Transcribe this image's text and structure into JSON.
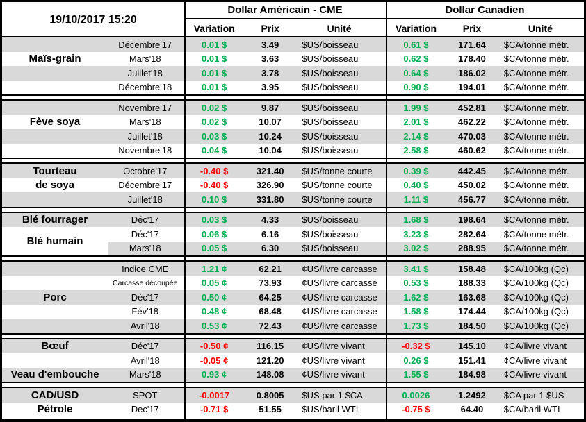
{
  "header": {
    "datetime": "19/10/2017 15:20",
    "usd_title": "Dollar Américain - CME",
    "cad_title": "Dollar Canadien",
    "columns": {
      "variation": "Variation",
      "prix": "Prix",
      "unite": "Unité"
    }
  },
  "colors": {
    "up_green": "#00B050",
    "down_red": "#FF0000",
    "row_stripe": "#D9D9D9",
    "border": "#000000"
  },
  "groups": [
    {
      "labels": [
        {
          "text": "Maïs-grain",
          "row": 1,
          "span": 1
        }
      ],
      "rows": [
        {
          "contract": "Décembre'17",
          "us": {
            "var": "0.01 $",
            "dir": "up",
            "prix": "3.49",
            "unit": "$US/boisseau"
          },
          "cad": {
            "var": "0.61 $",
            "dir": "up",
            "prix": "171.64",
            "unit": "$CA/tonne métr."
          }
        },
        {
          "contract": "Mars'18",
          "us": {
            "var": "0.01 $",
            "dir": "up",
            "prix": "3.63",
            "unit": "$US/boisseau"
          },
          "cad": {
            "var": "0.62 $",
            "dir": "up",
            "prix": "178.40",
            "unit": "$CA/tonne métr."
          }
        },
        {
          "contract": "Juillet'18",
          "us": {
            "var": "0.01 $",
            "dir": "up",
            "prix": "3.78",
            "unit": "$US/boisseau"
          },
          "cad": {
            "var": "0.64 $",
            "dir": "up",
            "prix": "186.02",
            "unit": "$CA/tonne métr."
          }
        },
        {
          "contract": "Décembre'18",
          "us": {
            "var": "0.01 $",
            "dir": "up",
            "prix": "3.95",
            "unit": "$US/boisseau"
          },
          "cad": {
            "var": "0.90 $",
            "dir": "up",
            "prix": "194.01",
            "unit": "$CA/tonne métr."
          }
        }
      ]
    },
    {
      "labels": [
        {
          "text": "Fève soya",
          "row": 1,
          "span": 1
        }
      ],
      "rows": [
        {
          "contract": "Novembre'17",
          "us": {
            "var": "0.02 $",
            "dir": "up",
            "prix": "9.87",
            "unit": "$US/boisseau"
          },
          "cad": {
            "var": "1.99 $",
            "dir": "up",
            "prix": "452.81",
            "unit": "$CA/tonne métr."
          }
        },
        {
          "contract": "Mars'18",
          "us": {
            "var": "0.02 $",
            "dir": "up",
            "prix": "10.07",
            "unit": "$US/boisseau"
          },
          "cad": {
            "var": "2.01 $",
            "dir": "up",
            "prix": "462.22",
            "unit": "$CA/tonne métr."
          }
        },
        {
          "contract": "Juillet'18",
          "us": {
            "var": "0.03 $",
            "dir": "up",
            "prix": "10.24",
            "unit": "$US/boisseau"
          },
          "cad": {
            "var": "2.14 $",
            "dir": "up",
            "prix": "470.03",
            "unit": "$CA/tonne métr."
          }
        },
        {
          "contract": "Novembre'18",
          "us": {
            "var": "0.04 $",
            "dir": "up",
            "prix": "10.04",
            "unit": "$US/boisseau"
          },
          "cad": {
            "var": "2.58 $",
            "dir": "up",
            "prix": "460.62",
            "unit": "$CA/tonne métr."
          }
        }
      ]
    },
    {
      "labels": [
        {
          "text": "Tourteau",
          "row": 0,
          "span": 1
        },
        {
          "text": "de soya",
          "row": 1,
          "span": 1
        }
      ],
      "rows": [
        {
          "contract": "Octobre'17",
          "us": {
            "var": "-0.40 $",
            "dir": "down",
            "prix": "321.40",
            "unit": "$US/tonne courte"
          },
          "cad": {
            "var": "0.39 $",
            "dir": "up",
            "prix": "442.45",
            "unit": "$CA/tonne métr."
          }
        },
        {
          "contract": "Décembre'17",
          "us": {
            "var": "-0.40 $",
            "dir": "down",
            "prix": "326.90",
            "unit": "$US/tonne courte"
          },
          "cad": {
            "var": "0.40 $",
            "dir": "up",
            "prix": "450.02",
            "unit": "$CA/tonne métr."
          }
        },
        {
          "contract": "Juillet'18",
          "us": {
            "var": "0.10 $",
            "dir": "up",
            "prix": "331.80",
            "unit": "$US/tonne courte"
          },
          "cad": {
            "var": "1.11 $",
            "dir": "up",
            "prix": "456.77",
            "unit": "$CA/tonne métr."
          }
        }
      ]
    },
    {
      "labels": [
        {
          "text": "Blé fourrager",
          "row": 0,
          "span": 1
        },
        {
          "text": "Blé humain",
          "row": 1,
          "span": 2,
          "bg": "#FFFFFF"
        }
      ],
      "rows": [
        {
          "contract": "Déc'17",
          "us": {
            "var": "0.03 $",
            "dir": "up",
            "prix": "4.33",
            "unit": "$US/boisseau"
          },
          "cad": {
            "var": "1.68 $",
            "dir": "up",
            "prix": "198.64",
            "unit": "$CA/tonne métr."
          }
        },
        {
          "contract": "Déc'17",
          "us": {
            "var": "0.06 $",
            "dir": "up",
            "prix": "6.16",
            "unit": "$US/boisseau"
          },
          "cad": {
            "var": "3.23 $",
            "dir": "up",
            "prix": "282.64",
            "unit": "$CA/tonne métr."
          }
        },
        {
          "contract": "Mars'18",
          "us": {
            "var": "0.05 $",
            "dir": "up",
            "prix": "6.30",
            "unit": "$US/boisseau"
          },
          "cad": {
            "var": "3.02 $",
            "dir": "up",
            "prix": "288.95",
            "unit": "$CA/tonne métr."
          }
        }
      ]
    },
    {
      "labels": [
        {
          "text": "Porc",
          "row": 2,
          "span": 1
        }
      ],
      "rows": [
        {
          "contract": "Indice CME",
          "us": {
            "var": "1.21 ¢",
            "dir": "up",
            "prix": "62.21",
            "unit": "¢US/livre carcasse"
          },
          "cad": {
            "var": "3.41 $",
            "dir": "up",
            "prix": "158.48",
            "unit": "$CA/100kg (Qc)"
          }
        },
        {
          "contract": "Carcasse découpée",
          "small": true,
          "us": {
            "var": "0.05 ¢",
            "dir": "up",
            "prix": "73.93",
            "unit": "¢US/livre carcasse"
          },
          "cad": {
            "var": "0.53 $",
            "dir": "up",
            "prix": "188.33",
            "unit": "$CA/100kg (Qc)"
          }
        },
        {
          "contract": "Déc'17",
          "us": {
            "var": "0.50 ¢",
            "dir": "up",
            "prix": "64.25",
            "unit": "¢US/livre carcasse"
          },
          "cad": {
            "var": "1.62 $",
            "dir": "up",
            "prix": "163.68",
            "unit": "$CA/100kg (Qc)"
          }
        },
        {
          "contract": "Fév'18",
          "us": {
            "var": "0.48 ¢",
            "dir": "up",
            "prix": "68.48",
            "unit": "¢US/livre carcasse"
          },
          "cad": {
            "var": "1.58 $",
            "dir": "up",
            "prix": "174.44",
            "unit": "$CA/100kg (Qc)"
          }
        },
        {
          "contract": "Avril'18",
          "us": {
            "var": "0.53 ¢",
            "dir": "up",
            "prix": "72.43",
            "unit": "¢US/livre carcasse"
          },
          "cad": {
            "var": "1.73 $",
            "dir": "up",
            "prix": "184.50",
            "unit": "$CA/100kg (Qc)"
          }
        }
      ]
    },
    {
      "labels": [
        {
          "text": "Bœuf",
          "row": 0,
          "span": 1
        },
        {
          "text": "Veau d'embouche",
          "row": 2,
          "span": 1
        }
      ],
      "rows": [
        {
          "contract": "Déc'17",
          "us": {
            "var": "-0.50 ¢",
            "dir": "down",
            "prix": "116.15",
            "unit": "¢US/livre vivant"
          },
          "cad": {
            "var": "-0.32 $",
            "dir": "down",
            "prix": "145.10",
            "unit": "¢CA/livre vivant"
          }
        },
        {
          "contract": "Avril'18",
          "us": {
            "var": "-0.05 ¢",
            "dir": "down",
            "prix": "121.20",
            "unit": "¢US/livre vivant"
          },
          "cad": {
            "var": "0.26 $",
            "dir": "up",
            "prix": "151.41",
            "unit": "¢CA/livre vivant"
          }
        },
        {
          "contract": "Mars'18",
          "us": {
            "var": "0.93 ¢",
            "dir": "up",
            "prix": "148.08",
            "unit": "¢US/livre vivant"
          },
          "cad": {
            "var": "1.55 $",
            "dir": "up",
            "prix": "184.98",
            "unit": "¢CA/livre vivant"
          }
        }
      ]
    },
    {
      "labels": [
        {
          "text": "CAD/USD",
          "row": 0,
          "span": 1
        },
        {
          "text": "Pétrole",
          "row": 1,
          "span": 1
        }
      ],
      "rows": [
        {
          "contract": "SPOT",
          "us": {
            "var": "-0.0017",
            "dir": "down",
            "prix": "0.8005",
            "unit": "$US par 1 $CA"
          },
          "cad": {
            "var": "0.0026",
            "dir": "up",
            "prix": "1.2492",
            "unit": "$CA par 1 $US"
          }
        },
        {
          "contract": "Dec'17",
          "us": {
            "var": "-0.71 $",
            "dir": "down",
            "prix": "51.55",
            "unit": "$US/baril WTI"
          },
          "cad": {
            "var": "-0.75 $",
            "dir": "down",
            "prix": "64.40",
            "unit": "$CA/baril WTI"
          }
        }
      ]
    }
  ]
}
